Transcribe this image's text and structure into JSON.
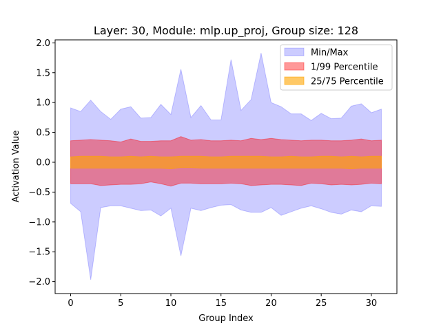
{
  "chart_data": {
    "type": "area",
    "title": "Layer: 30, Module: mlp.up_proj,  Group size: 128",
    "xlabel": "Group Index",
    "ylabel": "Activation Value",
    "xlim": [
      -1.55,
      32.55
    ],
    "ylim": [
      -2.2,
      2.05
    ],
    "xticks": [
      0,
      5,
      10,
      15,
      20,
      25,
      30
    ],
    "yticks": [
      -2.0,
      -1.5,
      -1.0,
      -0.5,
      0.0,
      0.5,
      1.0,
      1.5,
      2.0
    ],
    "ytick_labels": [
      "−2.0",
      "−1.5",
      "−1.0",
      "−0.5",
      "0.0",
      "0.5",
      "1.0",
      "1.5",
      "2.0"
    ],
    "legend_position": "top-right",
    "x": [
      0,
      1,
      2,
      3,
      4,
      5,
      6,
      7,
      8,
      9,
      10,
      11,
      12,
      13,
      14,
      15,
      16,
      17,
      18,
      19,
      20,
      21,
      22,
      23,
      24,
      25,
      26,
      27,
      28,
      29,
      30,
      31
    ],
    "series": [
      {
        "name": "Min/Max",
        "color": "#0000ff",
        "fill_opacity": 0.2,
        "upper": [
          0.91,
          0.85,
          1.04,
          0.85,
          0.72,
          0.89,
          0.93,
          0.74,
          0.75,
          0.97,
          0.8,
          1.56,
          0.75,
          0.95,
          0.71,
          0.71,
          1.72,
          0.87,
          1.05,
          1.83,
          1.0,
          0.93,
          0.81,
          0.81,
          0.7,
          0.82,
          0.73,
          0.74,
          0.94,
          0.98,
          0.83,
          0.89
        ],
        "lower": [
          -0.69,
          -0.83,
          -1.97,
          -0.76,
          -0.73,
          -0.73,
          -0.77,
          -0.81,
          -0.8,
          -0.9,
          -0.77,
          -1.57,
          -0.77,
          -0.81,
          -0.76,
          -0.72,
          -0.71,
          -0.8,
          -0.84,
          -0.84,
          -0.76,
          -0.89,
          -0.83,
          -0.77,
          -0.73,
          -0.78,
          -0.84,
          -0.87,
          -0.8,
          -0.83,
          -0.73,
          -0.74
        ]
      },
      {
        "name": "1/99 Percentile",
        "color": "#ff0000",
        "fill_opacity": 0.4,
        "upper": [
          0.36,
          0.37,
          0.38,
          0.37,
          0.36,
          0.34,
          0.39,
          0.35,
          0.35,
          0.36,
          0.36,
          0.43,
          0.37,
          0.38,
          0.36,
          0.36,
          0.37,
          0.36,
          0.4,
          0.38,
          0.4,
          0.38,
          0.37,
          0.36,
          0.37,
          0.37,
          0.36,
          0.36,
          0.37,
          0.39,
          0.36,
          0.37
        ],
        "lower": [
          -0.36,
          -0.36,
          -0.36,
          -0.39,
          -0.38,
          -0.37,
          -0.37,
          -0.36,
          -0.33,
          -0.36,
          -0.4,
          -0.35,
          -0.35,
          -0.36,
          -0.36,
          -0.36,
          -0.35,
          -0.36,
          -0.39,
          -0.38,
          -0.37,
          -0.37,
          -0.38,
          -0.39,
          -0.35,
          -0.36,
          -0.38,
          -0.37,
          -0.38,
          -0.37,
          -0.35,
          -0.36
        ]
      },
      {
        "name": "25/75 Percentile",
        "color": "#ffa500",
        "fill_opacity": 0.6,
        "upper": [
          0.09,
          0.1,
          0.1,
          0.1,
          0.09,
          0.09,
          0.1,
          0.09,
          0.1,
          0.09,
          0.09,
          0.1,
          0.1,
          0.1,
          0.09,
          0.09,
          0.1,
          0.1,
          0.1,
          0.1,
          0.09,
          0.09,
          0.1,
          0.09,
          0.09,
          0.1,
          0.1,
          0.09,
          0.1,
          0.09,
          0.1,
          0.1
        ],
        "lower": [
          -0.1,
          -0.1,
          -0.1,
          -0.1,
          -0.1,
          -0.1,
          -0.1,
          -0.1,
          -0.1,
          -0.1,
          -0.11,
          -0.09,
          -0.09,
          -0.1,
          -0.1,
          -0.1,
          -0.1,
          -0.1,
          -0.1,
          -0.1,
          -0.1,
          -0.1,
          -0.1,
          -0.1,
          -0.1,
          -0.1,
          -0.1,
          -0.1,
          -0.11,
          -0.1,
          -0.1,
          -0.1
        ]
      }
    ]
  }
}
